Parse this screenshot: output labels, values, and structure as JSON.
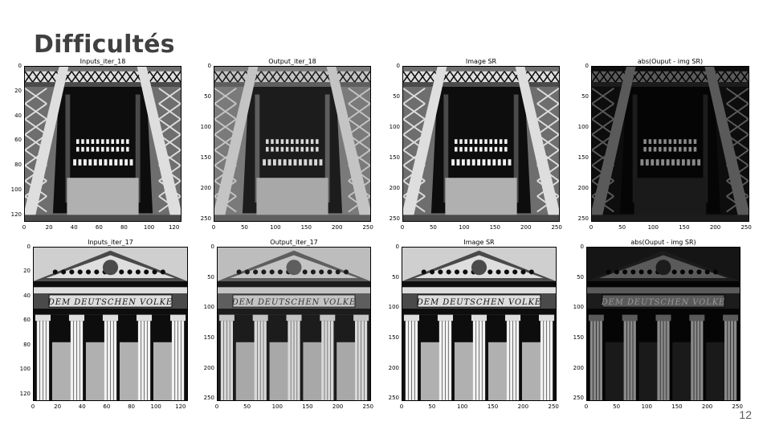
{
  "slide": {
    "title": "Difficultés",
    "page_number": "12"
  },
  "panels": [
    {
      "id": "p1",
      "title": "Inputs_iter_18",
      "scene": "eiffel",
      "style": "sharp",
      "y_ticks": [
        "0",
        "20",
        "40",
        "60",
        "80",
        "100",
        "120"
      ],
      "x_ticks": [
        "0",
        "20",
        "40",
        "60",
        "80",
        "100",
        "120"
      ]
    },
    {
      "id": "p2",
      "title": "Output_iter_18",
      "scene": "eiffel",
      "style": "soft",
      "y_ticks": [
        "0",
        "50",
        "100",
        "150",
        "200",
        "250"
      ],
      "x_ticks": [
        "0",
        "50",
        "100",
        "150",
        "200",
        "250"
      ]
    },
    {
      "id": "p3",
      "title": "Image SR",
      "scene": "eiffel",
      "style": "sharp",
      "y_ticks": [
        "0",
        "50",
        "100",
        "150",
        "200",
        "250"
      ],
      "x_ticks": [
        "0",
        "50",
        "100",
        "150",
        "200",
        "250"
      ]
    },
    {
      "id": "p4",
      "title": "abs(Ouput - img SR)",
      "scene": "eiffel",
      "style": "diff",
      "y_ticks": [
        "0",
        "50",
        "100",
        "150",
        "200",
        "250"
      ],
      "x_ticks": [
        "0",
        "50",
        "100",
        "150",
        "200",
        "250"
      ]
    },
    {
      "id": "p5",
      "title": "Inputs_iter_17",
      "scene": "reichstag",
      "style": "sharp",
      "inscription": "DEM DEUTSCHEN VOLKE",
      "y_ticks": [
        "0",
        "20",
        "40",
        "60",
        "80",
        "100",
        "120"
      ],
      "x_ticks": [
        "0",
        "20",
        "40",
        "60",
        "80",
        "100",
        "120"
      ]
    },
    {
      "id": "p6",
      "title": "Output_iter_17",
      "scene": "reichstag",
      "style": "soft",
      "inscription": "DEM DEUTSCHEN VOLKE",
      "y_ticks": [
        "0",
        "50",
        "100",
        "150",
        "200",
        "250"
      ],
      "x_ticks": [
        "0",
        "50",
        "100",
        "150",
        "200",
        "250"
      ]
    },
    {
      "id": "p7",
      "title": "Image SR",
      "scene": "reichstag",
      "style": "sharp",
      "inscription": "DEM DEUTSCHEN VOLKE",
      "y_ticks": [
        "0",
        "50",
        "100",
        "150",
        "200",
        "250"
      ],
      "x_ticks": [
        "0",
        "50",
        "100",
        "150",
        "200",
        "250"
      ]
    },
    {
      "id": "p8",
      "title": "abs(Ouput - img SR)",
      "scene": "reichstag",
      "style": "diff",
      "inscription": "DEM DEUTSCHEN VOLKE",
      "y_ticks": [
        "0",
        "50",
        "100",
        "150",
        "200",
        "250"
      ],
      "x_ticks": [
        "0",
        "50",
        "100",
        "150",
        "200",
        "250"
      ]
    }
  ]
}
